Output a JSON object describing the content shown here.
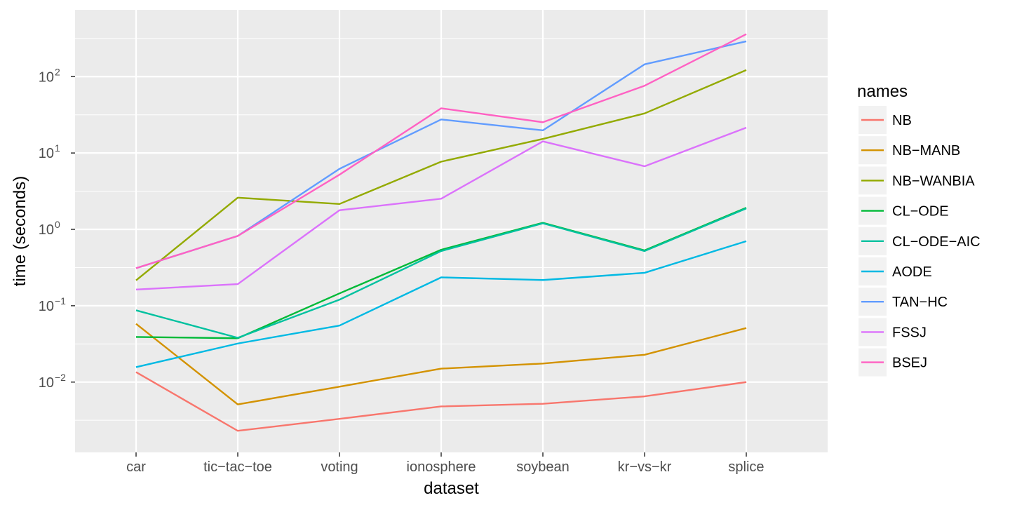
{
  "chart_data": {
    "type": "line",
    "xlabel": "dataset",
    "ylabel": "time (seconds)",
    "yscale": "log10",
    "ylim": [
      0.0012,
      750
    ],
    "yticks": [
      {
        "value": 0.01,
        "base": "10",
        "exp": "−2"
      },
      {
        "value": 0.1,
        "base": "10",
        "exp": "−1"
      },
      {
        "value": 1,
        "base": "10",
        "exp": "0"
      },
      {
        "value": 10,
        "base": "10",
        "exp": "1"
      },
      {
        "value": 100,
        "base": "10",
        "exp": "2"
      }
    ],
    "grid": true,
    "legend_title": "names",
    "legend_position": "right",
    "categories": [
      "car",
      "tic−tac−toe",
      "voting",
      "ionosphere",
      "soybean",
      "kr−vs−kr",
      "splice"
    ],
    "series": [
      {
        "name": "NB",
        "color": "#F8766D",
        "values": [
          0.0135,
          0.0023,
          0.0033,
          0.0048,
          0.0052,
          0.0065,
          0.01
        ]
      },
      {
        "name": "NB−MANB",
        "color": "#D39200",
        "values": [
          0.058,
          0.0051,
          0.0087,
          0.015,
          0.0175,
          0.0228,
          0.051
        ]
      },
      {
        "name": "NB−WANBIA",
        "color": "#93AA00",
        "values": [
          0.215,
          2.6,
          2.15,
          7.7,
          15.3,
          33.0,
          122
        ]
      },
      {
        "name": "CL−ODE",
        "color": "#00BA38",
        "values": [
          0.039,
          0.0375,
          0.145,
          0.54,
          1.22,
          0.53,
          1.92
        ]
      },
      {
        "name": "CL−ODE−AIC",
        "color": "#00C19F",
        "values": [
          0.087,
          0.038,
          0.12,
          0.52,
          1.2,
          0.52,
          1.88
        ]
      },
      {
        "name": "AODE",
        "color": "#00B9E3",
        "values": [
          0.0157,
          0.032,
          0.055,
          0.235,
          0.217,
          0.27,
          0.7
        ]
      },
      {
        "name": "TAN−HC",
        "color": "#619CFF",
        "values": [
          0.31,
          0.82,
          6.2,
          27.5,
          19.8,
          145,
          290
        ]
      },
      {
        "name": "FSSJ",
        "color": "#DB72FB",
        "values": [
          0.163,
          0.192,
          1.78,
          2.52,
          14.2,
          6.7,
          21.5
        ]
      },
      {
        "name": "BSEJ",
        "color": "#FF61C3",
        "values": [
          0.31,
          0.82,
          5.2,
          38.5,
          25.3,
          76,
          360
        ]
      }
    ]
  }
}
